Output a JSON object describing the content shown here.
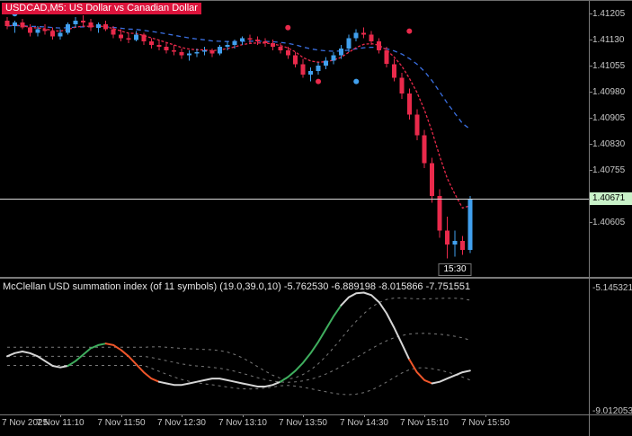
{
  "header": {
    "title": "USDCAD,M5:  US Dollar vs Canadian Dollar"
  },
  "indicator": {
    "label": "McClellan USD summation index (of 11 symbols) (19.0,39.0,10) -5.762530 -6.889198 -8.015866 -7.751551",
    "axis_labels": [
      "-5.145321",
      "-9.012053"
    ]
  },
  "price_axis": {
    "labels": [
      "1.41205",
      "1.41130",
      "1.41055",
      "1.40980",
      "1.40905",
      "1.40830",
      "1.40755",
      "1.40680",
      "1.40605"
    ],
    "bid_label": "1.40671"
  },
  "time_axis": {
    "date_label": "7 Nov 2025",
    "labels": [
      {
        "text": "7 Nov 11:10",
        "bar": 7
      },
      {
        "text": "7 Nov 11:50",
        "bar": 15
      },
      {
        "text": "7 Nov 12:30",
        "bar": 23
      },
      {
        "text": "7 Nov 13:10",
        "bar": 31
      },
      {
        "text": "7 Nov 13:50",
        "bar": 39
      },
      {
        "text": "7 Nov 14:30",
        "bar": 47
      },
      {
        "text": "7 Nov 15:10",
        "bar": 55
      },
      {
        "text": "7 Nov 15:50",
        "bar": 63
      }
    ]
  },
  "time_tag": {
    "text": "15:30",
    "bar": 59
  },
  "colors": {
    "background": "#000000",
    "bull": "#41A0EE",
    "bear": "#E92A4B",
    "ma_slow": "#3A6FE0",
    "ma_fast": "#E8294A",
    "bid_line": "#D8D8D8",
    "bid_tag_bg": "#C9F2C9",
    "title_bg": "#DC143C",
    "title_fg": "#FFFFFF",
    "ind_main": "#D6D6D6",
    "ind_up": "#3FAE5E",
    "ind_down": "#F0562A",
    "ind_band": "#7A7A7A"
  },
  "chart_data": {
    "type": "candlestick",
    "symbol": "USDCAD",
    "timeframe": "M5",
    "description": "US Dollar vs Canadian Dollar",
    "date": "7 Nov 2025",
    "start_time": "10:35",
    "interval_minutes": 5,
    "price_axis_range": [
      1.40445,
      1.41242
    ],
    "bid": 1.40671,
    "overlays": [
      {
        "name": "ma-slow",
        "type": "ema",
        "period": 26,
        "style": "dashed"
      },
      {
        "name": "ma-fast",
        "type": "ema",
        "period": 7,
        "style": "dashed"
      }
    ],
    "candles": [
      [
        1.41185,
        1.41195,
        1.4116,
        1.4117
      ],
      [
        1.4117,
        1.41185,
        1.4115,
        1.4118
      ],
      [
        1.4118,
        1.4119,
        1.4116,
        1.41165
      ],
      [
        1.41165,
        1.41175,
        1.4114,
        1.4115
      ],
      [
        1.4115,
        1.4117,
        1.4114,
        1.4116
      ],
      [
        1.4116,
        1.41175,
        1.41145,
        1.41155
      ],
      [
        1.41155,
        1.41165,
        1.4113,
        1.4114
      ],
      [
        1.4114,
        1.4116,
        1.4113,
        1.4115
      ],
      [
        1.4115,
        1.4118,
        1.41145,
        1.41175
      ],
      [
        1.41175,
        1.41195,
        1.41165,
        1.41185
      ],
      [
        1.41185,
        1.412,
        1.4117,
        1.4118
      ],
      [
        1.4118,
        1.4119,
        1.41155,
        1.41165
      ],
      [
        1.41165,
        1.4118,
        1.4115,
        1.41175
      ],
      [
        1.41175,
        1.41185,
        1.41155,
        1.4116
      ],
      [
        1.4116,
        1.4117,
        1.41135,
        1.41145
      ],
      [
        1.41145,
        1.4116,
        1.41125,
        1.41135
      ],
      [
        1.41135,
        1.4115,
        1.4112,
        1.4113
      ],
      [
        1.4113,
        1.41155,
        1.41125,
        1.41145
      ],
      [
        1.41145,
        1.4115,
        1.41115,
        1.41125
      ],
      [
        1.41125,
        1.41135,
        1.41105,
        1.41115
      ],
      [
        1.41115,
        1.4113,
        1.411,
        1.4111
      ],
      [
        1.4111,
        1.4112,
        1.4109,
        1.411
      ],
      [
        1.411,
        1.41115,
        1.41085,
        1.41095
      ],
      [
        1.41095,
        1.41105,
        1.41075,
        1.41085
      ],
      [
        1.41085,
        1.411,
        1.4107,
        1.4109
      ],
      [
        1.4109,
        1.41105,
        1.4108,
        1.41095
      ],
      [
        1.41095,
        1.4111,
        1.41085,
        1.411
      ],
      [
        1.411,
        1.41105,
        1.4108,
        1.4109
      ],
      [
        1.4109,
        1.41115,
        1.41085,
        1.4111
      ],
      [
        1.4111,
        1.41125,
        1.411,
        1.41115
      ],
      [
        1.41115,
        1.4113,
        1.41105,
        1.41125
      ],
      [
        1.41125,
        1.4114,
        1.41115,
        1.41135
      ],
      [
        1.41135,
        1.41145,
        1.4112,
        1.4113
      ],
      [
        1.4113,
        1.4114,
        1.41115,
        1.41125
      ],
      [
        1.41125,
        1.41135,
        1.4111,
        1.4112
      ],
      [
        1.4112,
        1.4113,
        1.411,
        1.4111
      ],
      [
        1.4111,
        1.4112,
        1.4109,
        1.411
      ],
      [
        1.411,
        1.4111,
        1.41075,
        1.41085
      ],
      [
        1.41085,
        1.41095,
        1.4105,
        1.4106
      ],
      [
        1.4106,
        1.41075,
        1.4102,
        1.4103
      ],
      [
        1.4103,
        1.4105,
        1.4101,
        1.4104
      ],
      [
        1.4104,
        1.41065,
        1.4103,
        1.41055
      ],
      [
        1.41055,
        1.4108,
        1.41045,
        1.4107
      ],
      [
        1.4107,
        1.41095,
        1.4106,
        1.41085
      ],
      [
        1.41085,
        1.41115,
        1.41075,
        1.41105
      ],
      [
        1.41105,
        1.41145,
        1.41095,
        1.41135
      ],
      [
        1.41135,
        1.4116,
        1.41125,
        1.4115
      ],
      [
        1.4115,
        1.41165,
        1.41135,
        1.41145
      ],
      [
        1.41145,
        1.41155,
        1.41115,
        1.41125
      ],
      [
        1.41125,
        1.41135,
        1.4109,
        1.411
      ],
      [
        1.411,
        1.4111,
        1.4105,
        1.4106
      ],
      [
        1.4106,
        1.41075,
        1.4101,
        1.4102
      ],
      [
        1.4102,
        1.41035,
        1.4096,
        1.40975
      ],
      [
        1.40975,
        1.4099,
        1.409,
        1.40915
      ],
      [
        1.40915,
        1.4093,
        1.4084,
        1.40855
      ],
      [
        1.40855,
        1.4087,
        1.4076,
        1.40775
      ],
      [
        1.40775,
        1.4079,
        1.4066,
        1.4068
      ],
      [
        1.4068,
        1.407,
        1.4056,
        1.4058
      ],
      [
        1.4058,
        1.4062,
        1.405,
        1.4054
      ],
      [
        1.4054,
        1.4058,
        1.40505,
        1.4055
      ],
      [
        1.4055,
        1.40565,
        1.4051,
        1.40525
      ],
      [
        1.40525,
        1.4068,
        1.40515,
        1.40671
      ]
    ],
    "markers": [
      {
        "bar": 1,
        "price": 1.41205,
        "color": "blue"
      },
      {
        "bar": 12,
        "price": 1.41215,
        "color": "blue"
      },
      {
        "bar": 37,
        "price": 1.41165,
        "color": "red"
      },
      {
        "bar": 41,
        "price": 1.4101,
        "color": "red"
      },
      {
        "bar": 46,
        "price": 1.4101,
        "color": "blue"
      },
      {
        "bar": 53,
        "price": 1.41155,
        "color": "red"
      }
    ],
    "subchart": {
      "type": "line",
      "title": "McClellan USD summation index (of 11 symbols) (19.0,39.0,10)",
      "current_values": [
        -5.76253,
        -6.889198,
        -8.015866,
        -7.751551
      ],
      "value_axis_range": [
        -9.012053,
        -5.145321
      ],
      "bands": {
        "period": 19,
        "width_factor": 1.13
      },
      "values": [
        -7.3,
        -7.2,
        -7.15,
        -7.2,
        -7.3,
        -7.45,
        -7.6,
        -7.65,
        -7.6,
        -7.45,
        -7.25,
        -7.05,
        -6.95,
        -6.9,
        -6.95,
        -7.1,
        -7.3,
        -7.55,
        -7.8,
        -8.0,
        -8.1,
        -8.15,
        -8.2,
        -8.2,
        -8.15,
        -8.1,
        -8.05,
        -8.0,
        -8.0,
        -8.05,
        -8.1,
        -8.15,
        -8.2,
        -8.25,
        -8.25,
        -8.2,
        -8.1,
        -7.95,
        -7.75,
        -7.5,
        -7.2,
        -6.85,
        -6.45,
        -6.05,
        -5.7,
        -5.45,
        -5.32,
        -5.3,
        -5.38,
        -5.6,
        -5.95,
        -6.4,
        -6.9,
        -7.4,
        -7.8,
        -8.05,
        -8.15,
        -8.1,
        -8.0,
        -7.9,
        -7.8,
        -7.751551
      ],
      "segment_colors": "sssssssssgggggooooooossssssssssssssssggggggggsssssssssooosssss"
    }
  }
}
